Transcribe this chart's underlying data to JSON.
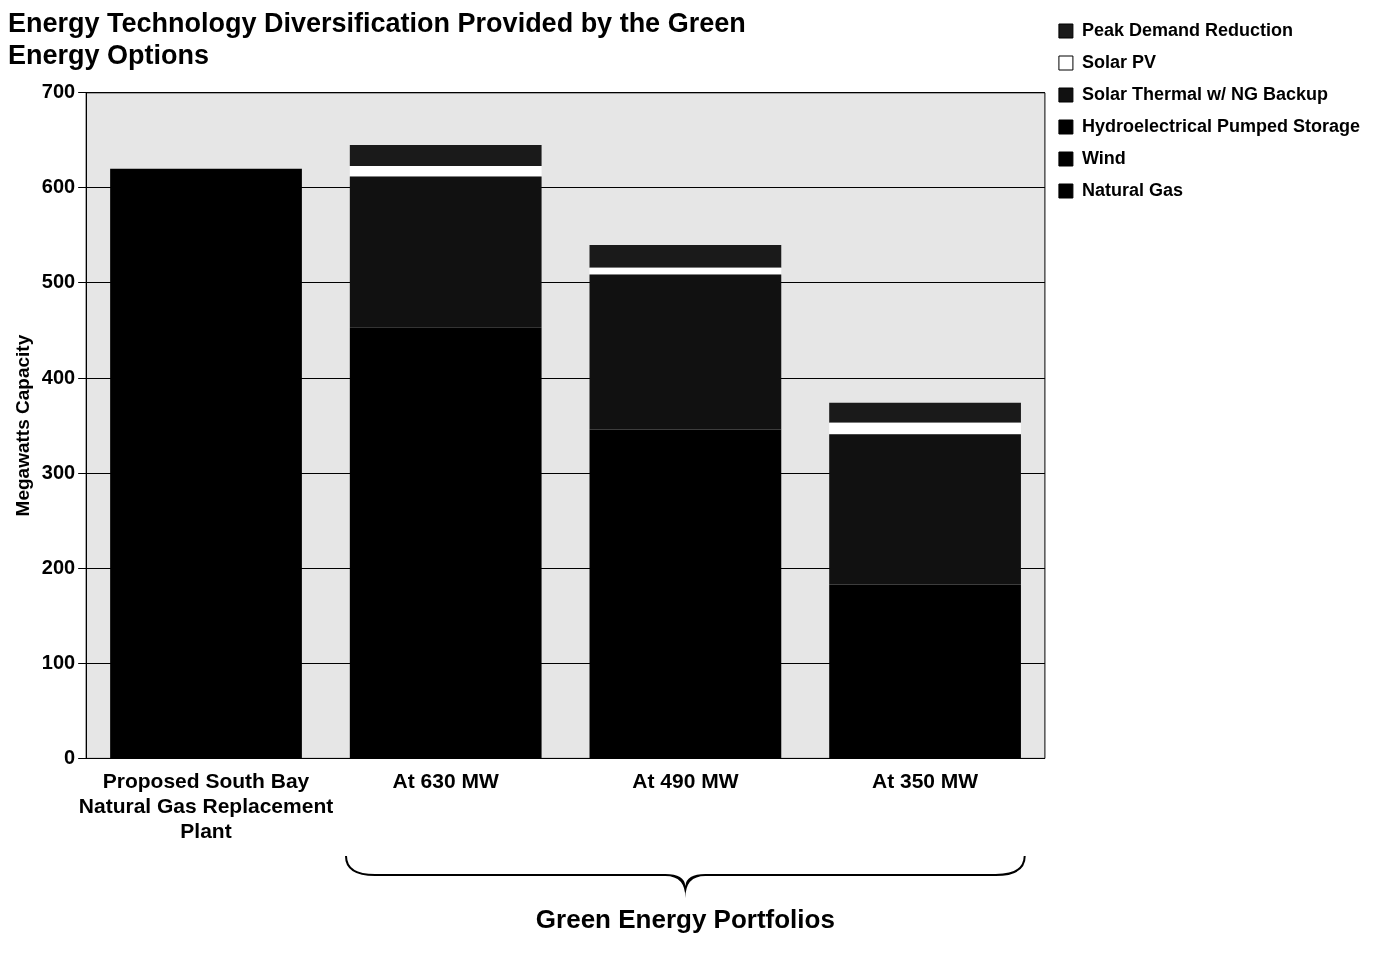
{
  "chart_data": {
    "type": "bar",
    "title": "Energy Technology Diversification Provided by the Green Energy Options",
    "ylabel": "Megawatts Capacity",
    "categories": [
      "Proposed South Bay Natural Gas Replacement Plant",
      "At 630 MW",
      "At 490 MW",
      "At 350 MW"
    ],
    "series": [
      {
        "name": "Natural Gas",
        "color": "#000000",
        "values": [
          620,
          453,
          346,
          183
        ]
      },
      {
        "name": "Wind",
        "color": "#000000",
        "values": [
          0,
          0,
          0,
          0
        ]
      },
      {
        "name": "Hydroelectrical Pumped Storage",
        "color": "#000000",
        "values": [
          0,
          0,
          0,
          0
        ]
      },
      {
        "name": "Solar Thermal w/ NG Backup",
        "color": "#111111",
        "values": [
          0,
          159,
          163,
          158
        ]
      },
      {
        "name": "Solar PV",
        "color": "#ffffff",
        "values": [
          0,
          11,
          7,
          12
        ]
      },
      {
        "name": "Peak Demand Reduction",
        "color": "#1a1a1a",
        "values": [
          0,
          22,
          24,
          21
        ]
      }
    ],
    "stacked": true,
    "ylim": [
      0,
      700
    ],
    "yticks": [
      0,
      100,
      200,
      300,
      400,
      500,
      600,
      700
    ],
    "grid": "y",
    "legend": "top right",
    "annotations": [
      "Green Energy Portfolios"
    ]
  }
}
